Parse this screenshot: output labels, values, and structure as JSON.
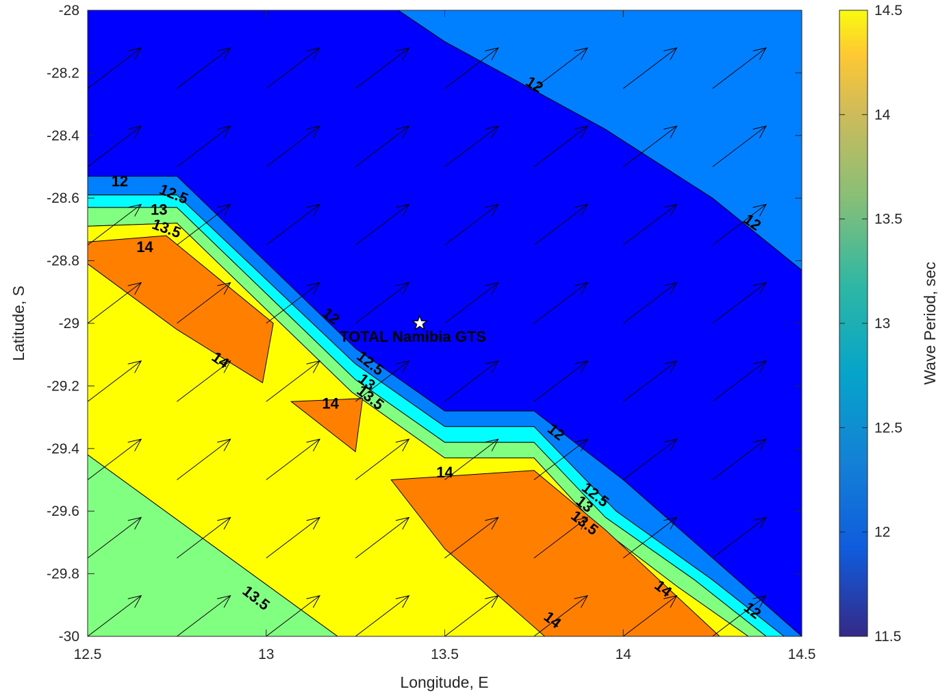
{
  "chart_data": {
    "type": "contour",
    "title": "",
    "xlabel": "Longitude, E",
    "ylabel": "Latitude, S",
    "colorbar_label": "Wave Period, sec",
    "xlim": [
      12.5,
      14.5
    ],
    "ylim": [
      -30,
      -28
    ],
    "clim": [
      11.5,
      14.5
    ],
    "x_ticks": [
      "12.5",
      "13",
      "13.5",
      "14",
      "14.5"
    ],
    "y_ticks": [
      "-28",
      "-28.2",
      "-28.4",
      "-28.6",
      "-28.8",
      "-29",
      "-29.2",
      "-29.4",
      "-29.6",
      "-29.8",
      "-30"
    ],
    "colorbar_ticks": [
      "11.5",
      "12",
      "12.5",
      "13",
      "13.5",
      "14",
      "14.5"
    ],
    "grid": false,
    "colormap": "parula",
    "contour_levels": [
      12,
      12.5,
      13,
      13.5,
      14
    ],
    "level_colors": {
      "below_12": "#0000ff",
      "12_to_12.5": "#0080ff",
      "12.5_to_13": "#00ffff",
      "13_to_13.5": "#80ff80",
      "13.5_to_14": "#ffff00",
      "above_14": "#ff8000"
    },
    "regions": [
      {
        "level": "12_to_12.5",
        "polygon": [
          [
            13.87,
            -28
          ],
          [
            14.5,
            -28
          ],
          [
            14.5,
            -28.83
          ],
          [
            14.25,
            -28.6
          ],
          [
            13.95,
            -28.38
          ],
          [
            13.5,
            -28.1
          ],
          [
            13.37,
            -28
          ]
        ]
      },
      {
        "level": "12_to_12.5",
        "polygon": [
          [
            12.5,
            -28.53
          ],
          [
            12.75,
            -28.53
          ],
          [
            13.25,
            -29.08
          ],
          [
            13.5,
            -29.28
          ],
          [
            13.75,
            -29.28
          ],
          [
            14.0,
            -29.5
          ],
          [
            14.5,
            -30
          ],
          [
            14.45,
            -30
          ],
          [
            14.25,
            -29.82
          ],
          [
            13.98,
            -29.6
          ],
          [
            13.75,
            -29.33
          ],
          [
            13.5,
            -29.33
          ],
          [
            13.25,
            -29.13
          ],
          [
            12.75,
            -28.59
          ],
          [
            12.5,
            -28.59
          ]
        ]
      },
      {
        "level": "12.5_to_13",
        "polygon": [
          [
            12.5,
            -28.59
          ],
          [
            12.75,
            -28.59
          ],
          [
            13.25,
            -29.13
          ],
          [
            13.5,
            -29.33
          ],
          [
            13.75,
            -29.33
          ],
          [
            13.98,
            -29.6
          ],
          [
            14.25,
            -29.82
          ],
          [
            14.45,
            -30
          ],
          [
            14.4,
            -30
          ],
          [
            14.2,
            -29.82
          ],
          [
            13.95,
            -29.62
          ],
          [
            13.75,
            -29.38
          ],
          [
            13.5,
            -29.38
          ],
          [
            13.25,
            -29.18
          ],
          [
            12.75,
            -28.63
          ],
          [
            12.5,
            -28.63
          ]
        ]
      },
      {
        "level": "13_to_13.5",
        "polygon": [
          [
            12.5,
            -28.63
          ],
          [
            12.75,
            -28.63
          ],
          [
            13.25,
            -29.18
          ],
          [
            13.5,
            -29.38
          ],
          [
            13.75,
            -29.38
          ],
          [
            13.95,
            -29.62
          ],
          [
            14.2,
            -29.82
          ],
          [
            14.4,
            -30
          ],
          [
            14.35,
            -30
          ],
          [
            14.15,
            -29.84
          ],
          [
            13.92,
            -29.64
          ],
          [
            13.75,
            -29.43
          ],
          [
            13.5,
            -29.43
          ],
          [
            13.24,
            -29.22
          ],
          [
            12.75,
            -28.68
          ],
          [
            12.5,
            -28.69
          ]
        ]
      },
      {
        "level": "13.5_to_14",
        "polygon": [
          [
            12.5,
            -28.69
          ],
          [
            12.75,
            -28.68
          ],
          [
            13.24,
            -29.22
          ],
          [
            13.5,
            -29.43
          ],
          [
            13.75,
            -29.43
          ],
          [
            13.92,
            -29.64
          ],
          [
            14.15,
            -29.84
          ],
          [
            14.35,
            -30
          ],
          [
            13.2,
            -30
          ],
          [
            12.5,
            -29.42
          ]
        ]
      },
      {
        "level": "13_to_13.5",
        "polygon": [
          [
            12.5,
            -29.42
          ],
          [
            13.2,
            -30
          ],
          [
            12.5,
            -30
          ]
        ]
      },
      {
        "level": "above_14",
        "polygon": [
          [
            12.5,
            -28.74
          ],
          [
            12.72,
            -28.72
          ],
          [
            13.02,
            -29.0
          ],
          [
            12.99,
            -29.19
          ],
          [
            12.75,
            -29.02
          ],
          [
            12.5,
            -28.81
          ]
        ]
      },
      {
        "level": "above_14",
        "polygon": [
          [
            13.07,
            -29.25
          ],
          [
            13.27,
            -29.24
          ],
          [
            13.25,
            -29.41
          ]
        ]
      },
      {
        "level": "above_14",
        "polygon": [
          [
            13.35,
            -29.5
          ],
          [
            13.75,
            -29.47
          ],
          [
            13.95,
            -29.66
          ],
          [
            14.27,
            -30
          ],
          [
            13.78,
            -30
          ],
          [
            13.5,
            -29.72
          ]
        ]
      }
    ],
    "contour_labels": [
      {
        "text": "12",
        "x": 13.75,
        "y": -28.24,
        "angle": 32
      },
      {
        "text": "12",
        "x": 14.36,
        "y": -28.68,
        "angle": 35
      },
      {
        "text": "12",
        "x": 12.59,
        "y": -28.55,
        "angle": 0
      },
      {
        "text": "12.5",
        "x": 12.74,
        "y": -28.59,
        "angle": 22
      },
      {
        "text": "13",
        "x": 12.7,
        "y": -28.64,
        "angle": 0
      },
      {
        "text": "13.5",
        "x": 12.72,
        "y": -28.7,
        "angle": 20
      },
      {
        "text": "14",
        "x": 12.66,
        "y": -28.76,
        "angle": 0
      },
      {
        "text": "12",
        "x": 13.18,
        "y": -28.98,
        "angle": 38
      },
      {
        "text": "12.5",
        "x": 13.29,
        "y": -29.13,
        "angle": 38
      },
      {
        "text": "13",
        "x": 13.28,
        "y": -29.19,
        "angle": 38
      },
      {
        "text": "13.5",
        "x": 13.29,
        "y": -29.24,
        "angle": 38
      },
      {
        "text": "14",
        "x": 12.87,
        "y": -29.12,
        "angle": 35
      },
      {
        "text": "14",
        "x": 13.18,
        "y": -29.26,
        "angle": 0
      },
      {
        "text": "12",
        "x": 13.81,
        "y": -29.35,
        "angle": 38
      },
      {
        "text": "14",
        "x": 13.5,
        "y": -29.48,
        "angle": 0
      },
      {
        "text": "12.5",
        "x": 13.92,
        "y": -29.55,
        "angle": 38
      },
      {
        "text": "13",
        "x": 13.89,
        "y": -29.58,
        "angle": 38
      },
      {
        "text": "13.5",
        "x": 13.89,
        "y": -29.64,
        "angle": 38
      },
      {
        "text": "13.5",
        "x": 12.97,
        "y": -29.88,
        "angle": 38
      },
      {
        "text": "14",
        "x": 14.11,
        "y": -29.85,
        "angle": 38
      },
      {
        "text": "14",
        "x": 13.8,
        "y": -29.95,
        "angle": 38
      },
      {
        "text": "12",
        "x": 14.36,
        "y": -29.92,
        "angle": 38
      }
    ],
    "vector_field": {
      "x": [
        12.5,
        12.75,
        13.0,
        13.25,
        13.5,
        13.75,
        14.0,
        14.25
      ],
      "y": [
        -28.25,
        -28.5,
        -28.75,
        -29.0,
        -29.25,
        -29.5,
        -29.75,
        -30.0
      ],
      "u": 0.15,
      "v": 0.13
    },
    "site": {
      "name": "TOTAL Namibia GTS",
      "lon": 13.43,
      "lat": -29.0
    }
  }
}
